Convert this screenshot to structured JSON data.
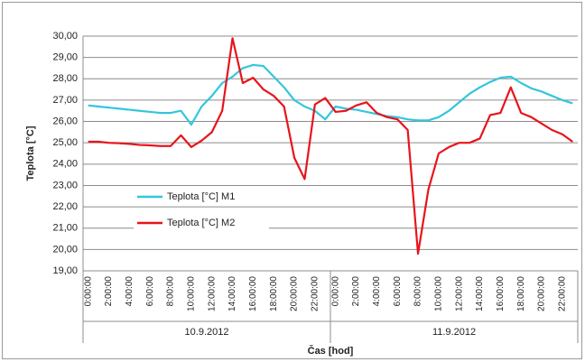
{
  "chart_data": {
    "type": "line",
    "y_label": "Teplota [°C]",
    "x_label": "Čas [hod]",
    "categories": [
      "0:00:00",
      null,
      "2:00:00",
      null,
      "4:00:00",
      null,
      "6:00:00",
      null,
      "8:00:00",
      null,
      "10:00:00",
      null,
      "12:00:00",
      null,
      "14:00:00",
      null,
      "16:00:00",
      null,
      "18:00:00",
      null,
      "20:00:00",
      null,
      "22:00:00",
      null,
      "0:00:00",
      null,
      "2:00:00",
      null,
      "4:00:00",
      null,
      "6:00:00",
      null,
      "8:00:00",
      null,
      "10:00:00",
      null,
      "12:00:00",
      null,
      "14:00:00",
      null,
      "16:00:00",
      null,
      "18:00:00",
      null,
      "20:00:00",
      null,
      "22:00:00",
      null
    ],
    "groups": [
      "10.9.2012",
      "11.9.2012"
    ],
    "series": [
      {
        "name": "Teplota [°C] M1",
        "color": "#33c6dc",
        "values": [
          26.75,
          26.7,
          26.65,
          26.6,
          26.55,
          26.5,
          26.45,
          26.4,
          26.4,
          26.5,
          25.85,
          26.7,
          27.2,
          27.8,
          28.1,
          28.5,
          28.65,
          28.6,
          28.1,
          27.6,
          27.0,
          26.7,
          26.5,
          26.1,
          26.7,
          26.6,
          26.55,
          26.45,
          26.35,
          26.25,
          26.2,
          26.1,
          26.05,
          26.05,
          26.2,
          26.5,
          26.9,
          27.3,
          27.6,
          27.85,
          28.05,
          28.1,
          27.8,
          27.55,
          27.4,
          27.2,
          27.0,
          26.85
        ]
      },
      {
        "name": "Teplota [°C] M2",
        "color": "#e8141c",
        "values": [
          25.05,
          25.05,
          25.0,
          24.98,
          24.95,
          24.9,
          24.88,
          24.85,
          24.85,
          25.35,
          24.8,
          25.1,
          25.5,
          26.5,
          29.9,
          27.8,
          28.05,
          27.5,
          27.2,
          26.7,
          24.3,
          23.3,
          26.8,
          27.1,
          26.45,
          26.5,
          26.75,
          26.9,
          26.4,
          26.2,
          26.1,
          25.6,
          19.8,
          22.8,
          24.5,
          24.8,
          25.0,
          25.0,
          25.2,
          26.3,
          26.4,
          27.6,
          26.4,
          26.2,
          25.9,
          25.6,
          25.4,
          25.05
        ]
      }
    ],
    "ylim": [
      19,
      30
    ],
    "yticks": [
      {
        "value": 19,
        "label": "19,00"
      },
      {
        "value": 20,
        "label": "20,00"
      },
      {
        "value": 21,
        "label": "21,00"
      },
      {
        "value": 22,
        "label": "22,00"
      },
      {
        "value": 23,
        "label": "23,00"
      },
      {
        "value": 24,
        "label": "24,00"
      },
      {
        "value": 25,
        "label": "25,00"
      },
      {
        "value": 26,
        "label": "26,00"
      },
      {
        "value": 27,
        "label": "27,00"
      },
      {
        "value": 28,
        "label": "28,00"
      },
      {
        "value": 29,
        "label": "29,00"
      },
      {
        "value": 30,
        "label": "30,00"
      }
    ],
    "grid": true,
    "legend": "left"
  }
}
